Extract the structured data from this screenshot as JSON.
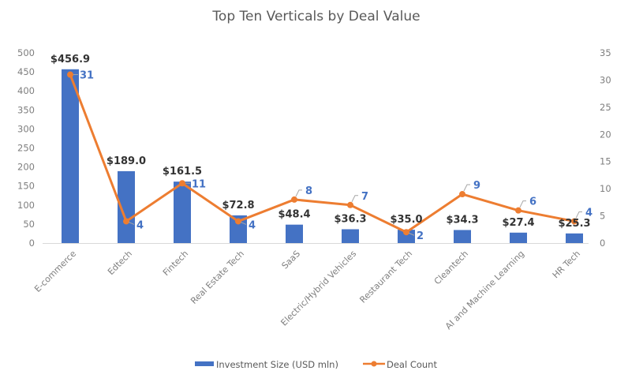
{
  "chart_data": {
    "type": "bar",
    "title": "Top Ten Verticals by Deal Value",
    "categories": [
      "E-commerce",
      "Edtech",
      "Fintech",
      "Real Estate Tech",
      "SaaS",
      "Electric/Hybrid Vehicles",
      "Restaurant Tech",
      "Cleantech",
      "AI and Machine Learning",
      "HR Tech"
    ],
    "series": [
      {
        "name": "Investment Size (USD mln)",
        "type": "bar",
        "axis": "left",
        "color": "#4472C4",
        "values": [
          456.9,
          189.0,
          161.5,
          72.8,
          48.4,
          36.3,
          35.0,
          34.3,
          27.4,
          25.3
        ],
        "labels": [
          "$456.9",
          "$189.0",
          "$161.5",
          "$72.8",
          "$48.4",
          "$36.3",
          "$35.0",
          "$34.3",
          "$27.4",
          "$25.3"
        ]
      },
      {
        "name": "Deal Count",
        "type": "line",
        "axis": "right",
        "color": "#ED7D31",
        "label_color": "#4472C4",
        "values": [
          31,
          4,
          11,
          4,
          8,
          7,
          2,
          9,
          6,
          4
        ],
        "labels": [
          "31",
          "4",
          "11",
          "4",
          "8",
          "7",
          "2",
          "9",
          "6",
          "4"
        ]
      }
    ],
    "y_left": {
      "label": "",
      "ylim": [
        0,
        500
      ],
      "ticks": [
        "0",
        "50",
        "100",
        "150",
        "200",
        "250",
        "300",
        "350",
        "400",
        "450",
        "500"
      ]
    },
    "y_right": {
      "label": "",
      "ylim": [
        0,
        35
      ],
      "ticks": [
        "0",
        "5",
        "10",
        "15",
        "20",
        "25",
        "30",
        "35"
      ]
    },
    "xlabel": "",
    "grid": false,
    "legend": {
      "position": "bottom",
      "entries": [
        "Investment Size (USD mln)",
        "Deal Count"
      ]
    }
  }
}
